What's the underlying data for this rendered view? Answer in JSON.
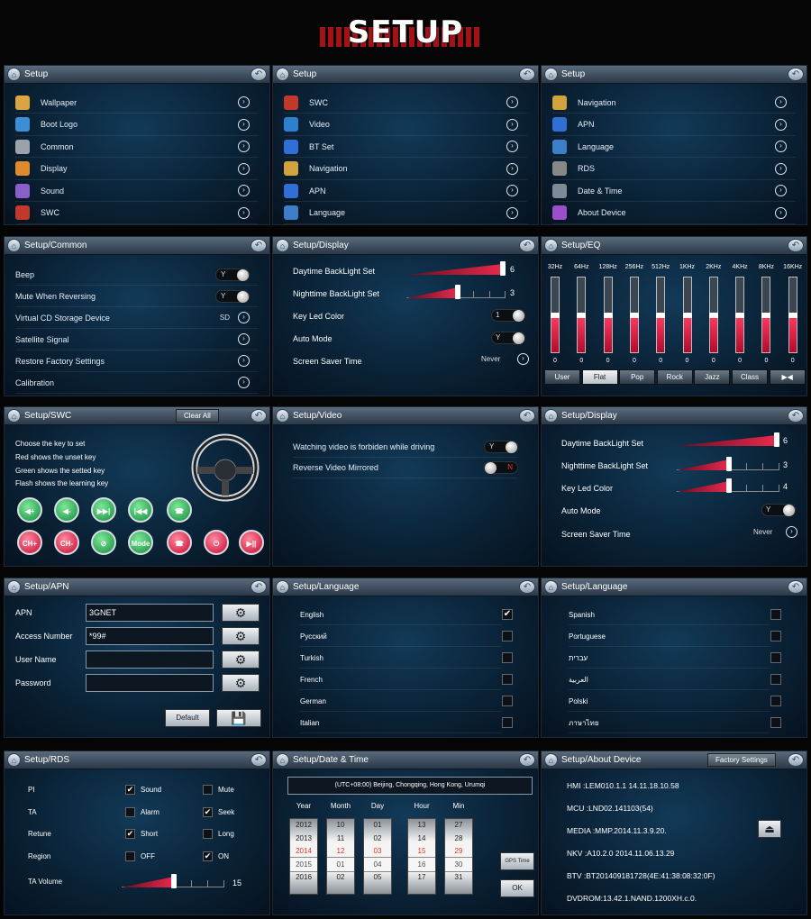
{
  "banner": "SETUP",
  "p1": {
    "title": "Setup",
    "items": [
      {
        "label": "Wallpaper",
        "icon": "wallpaper-icon",
        "color": "#d9a441"
      },
      {
        "label": "Boot Logo",
        "icon": "boot-logo-icon",
        "color": "#3b8fd6"
      },
      {
        "label": "Common",
        "icon": "gear-icon",
        "color": "#9aa3ab"
      },
      {
        "label": "Display",
        "icon": "display-icon",
        "color": "#e08a2c"
      },
      {
        "label": "Sound",
        "icon": "sound-icon",
        "color": "#8a5fc9"
      },
      {
        "label": "SWC",
        "icon": "steering-wheel-icon",
        "color": "#c0392b"
      }
    ]
  },
  "p2": {
    "title": "Setup",
    "items": [
      {
        "label": "SWC",
        "icon": "steering-wheel-icon",
        "color": "#c0392b"
      },
      {
        "label": "Video",
        "icon": "video-icon",
        "color": "#2d7fd0"
      },
      {
        "label": "BT Set",
        "icon": "bluetooth-icon",
        "color": "#2f6fd6"
      },
      {
        "label": "Navigation",
        "icon": "navigation-icon",
        "color": "#d0a33c"
      },
      {
        "label": "APN",
        "icon": "apn-3g-icon",
        "color": "#2f6fd6"
      },
      {
        "label": "Language",
        "icon": "language-icon",
        "color": "#3c7fc8"
      }
    ]
  },
  "p3": {
    "title": "Setup",
    "items": [
      {
        "label": "Navigation",
        "icon": "navigation-icon",
        "color": "#d0a33c"
      },
      {
        "label": "APN",
        "icon": "apn-3g-icon",
        "color": "#2f6fd6"
      },
      {
        "label": "Language",
        "icon": "language-icon",
        "color": "#3c7fc8"
      },
      {
        "label": "RDS",
        "icon": "rds-icon",
        "color": "#888888"
      },
      {
        "label": "Date & Time",
        "icon": "date-time-icon",
        "color": "#7e8a96"
      },
      {
        "label": "About Device",
        "icon": "info-icon",
        "color": "#9b4fc8"
      }
    ]
  },
  "p4": {
    "title": "Setup/Common",
    "rows": [
      {
        "label": "Beep",
        "value": "Y"
      },
      {
        "label": "Mute When Reversing",
        "value": "Y"
      },
      {
        "label": "Virtual CD Storage Device",
        "value": "SD"
      },
      {
        "label": "Satellite Signal",
        "value": ""
      },
      {
        "label": "Restore Factory Settings",
        "value": ""
      },
      {
        "label": "Calibration",
        "value": ""
      }
    ]
  },
  "p5": {
    "title": "Setup/Display",
    "day_label": "Daytime BackLight Set",
    "day_value": "6",
    "night_label": "Nighttime BackLight Set",
    "night_value": "3",
    "key_label": "Key Led Color",
    "key_value": "1",
    "auto_label": "Auto Mode",
    "auto_value": "Y",
    "saver_label": "Screen Saver Time",
    "saver_value": "Never"
  },
  "p6": {
    "title": "Setup/EQ",
    "bands": [
      "32Hz",
      "64Hz",
      "128Hz",
      "256Hz",
      "512Hz",
      "1KHz",
      "2KHz",
      "4KHz",
      "8KHz",
      "16KHz"
    ],
    "values": [
      "0",
      "0",
      "0",
      "0",
      "0",
      "0",
      "0",
      "0",
      "0",
      "0"
    ],
    "level": 0.5,
    "presets": [
      "User",
      "Flat",
      "Pop",
      "Rock",
      "Jazz",
      "Class",
      "▶◀"
    ],
    "selected": "Flat"
  },
  "p7": {
    "title": "Setup/SWC",
    "clear": "Clear All",
    "lines": [
      "Choose the key to set",
      "Red shows the unset key",
      "Green shows the setted key",
      "Flash shows the learning key"
    ],
    "row1": [
      "◀+",
      "◀-",
      "▶▶|",
      "|◀◀",
      "☎"
    ],
    "row2": [
      "CH+",
      "CH-",
      "⊘",
      "Mode",
      "☎",
      "⏻",
      "▶||"
    ]
  },
  "p8": {
    "title": "Setup/Video",
    "row1_label": "Watching video is forbiden while driving",
    "row1_value": "Y",
    "row2_label": "Reverse Video Mirrored",
    "row2_value": "N"
  },
  "p9": {
    "title": "Setup/Display",
    "day_label": "Daytime BackLight Set",
    "day_value": "6",
    "night_label": "Nighttime BackLight Set",
    "night_value": "3",
    "key_label": "Key Led Color",
    "key_value": "4",
    "auto_label": "Auto Mode",
    "auto_value": "Y",
    "saver_label": "Screen Saver Time",
    "saver_value": "Never"
  },
  "p10": {
    "title": "Setup/APN",
    "fields": [
      {
        "label": "APN",
        "value": "3GNET"
      },
      {
        "label": "Access Number",
        "value": "*99#"
      },
      {
        "label": "User Name",
        "value": ""
      },
      {
        "label": "Password",
        "value": ""
      }
    ],
    "default": "Default",
    "save_icon": "floppy-icon"
  },
  "p11": {
    "title": "Setup/Language",
    "items": [
      {
        "label": "English",
        "checked": "✔"
      },
      {
        "label": "Русский",
        "checked": ""
      },
      {
        "label": "Turkish",
        "checked": ""
      },
      {
        "label": "French",
        "checked": ""
      },
      {
        "label": "German",
        "checked": ""
      },
      {
        "label": "Italian",
        "checked": ""
      }
    ]
  },
  "p12": {
    "title": "Setup/Language",
    "items": [
      {
        "label": "Spanish",
        "checked": ""
      },
      {
        "label": "Portuguese",
        "checked": ""
      },
      {
        "label": "עברית",
        "checked": ""
      },
      {
        "label": "العربية",
        "checked": ""
      },
      {
        "label": "Polski",
        "checked": ""
      },
      {
        "label": "ภาษาไทย",
        "checked": ""
      }
    ]
  },
  "p13": {
    "title": "Setup/RDS",
    "rows": [
      {
        "label": "PI",
        "a": "Sound",
        "a_chk": "✔",
        "b": "Mute",
        "b_chk": ""
      },
      {
        "label": "TA",
        "a": "Alarm",
        "a_chk": "",
        "b": "Seek",
        "b_chk": "✔"
      },
      {
        "label": "Retune",
        "a": "Short",
        "a_chk": "✔",
        "b": "Long",
        "b_chk": ""
      },
      {
        "label": "Region",
        "a": "OFF",
        "a_chk": "",
        "b": "ON",
        "b_chk": "✔"
      }
    ],
    "volume_label": "TA Volume",
    "volume_value": "15"
  },
  "p14": {
    "title": "Setup/Date & Time",
    "timezone": "(UTC+08:00) Beijing, Chongqing, Hong Kong, Urumqi",
    "headers": [
      "Year",
      "Month",
      "Day",
      "Hour",
      "Min"
    ],
    "year": [
      "2012",
      "2013",
      "2014",
      "2015",
      "2016"
    ],
    "month": [
      "10",
      "11",
      "12",
      "01",
      "02"
    ],
    "day": [
      "01",
      "02",
      "03",
      "04",
      "05"
    ],
    "hour": [
      "13",
      "14",
      "15",
      "16",
      "17"
    ],
    "min": [
      "27",
      "28",
      "29",
      "30",
      "31"
    ],
    "gps": "GPS Time",
    "ok": "OK"
  },
  "p15": {
    "title": "Setup/About Device",
    "factory": "Factory Settings",
    "lines": [
      "HMI  :LEM010.1.1   14.11.18.10.58",
      "MCU :LND02.141103(54)",
      "MEDIA :MMP.2014.11.3.9.20.",
      "NKV :A10.2.0 2014.11.06.13.29",
      "BTV  :BT201409181728(4E:41:38:08:32:0F)",
      "DVDROM:13.42.1.NAND.1200XH.c.0."
    ]
  }
}
